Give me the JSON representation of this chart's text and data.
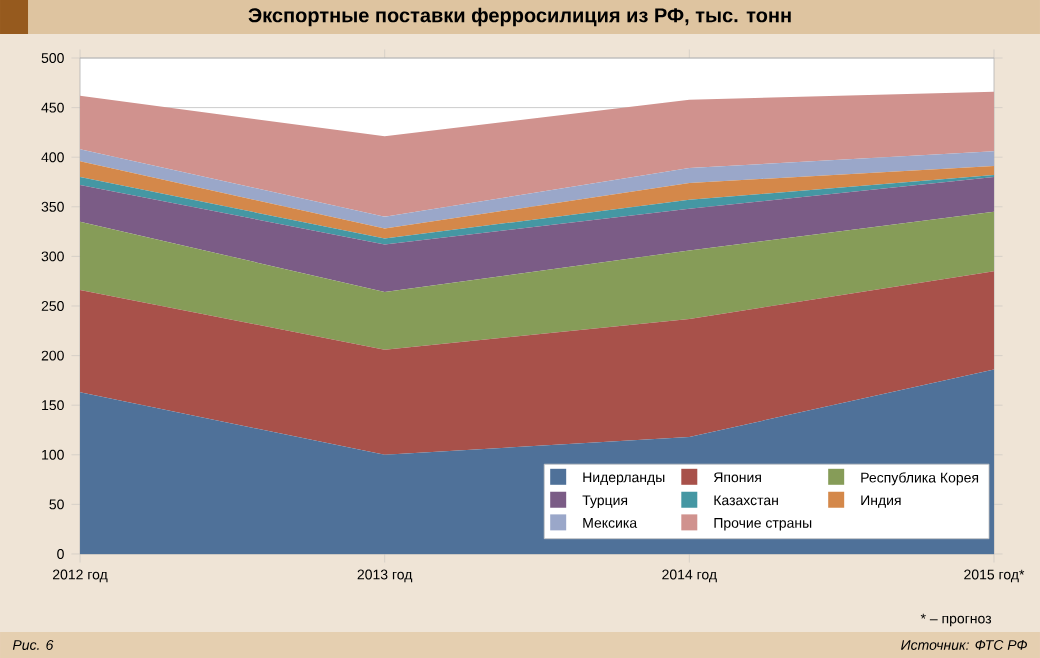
{
  "chart_data": {
    "type": "area",
    "title": "Экспортные поставки ферросилиция из РФ, тыс. тонн",
    "categories": [
      "2012 год",
      "2013 год",
      "2014 год",
      "2015 год*"
    ],
    "stacked": true,
    "series": [
      {
        "name": "Нидерланды",
        "color": "#4f7199",
        "values": [
          163,
          100,
          118,
          186
        ]
      },
      {
        "name": "Япония",
        "color": "#a8514a",
        "values": [
          103,
          106,
          119,
          99
        ]
      },
      {
        "name": "Республика Корея",
        "color": "#869c58",
        "values": [
          69,
          58,
          69,
          60
        ]
      },
      {
        "name": "Турция",
        "color": "#7b5c86",
        "values": [
          37,
          48,
          42,
          35
        ]
      },
      {
        "name": "Казахстан",
        "color": "#4597a3",
        "values": [
          8,
          6,
          9,
          2
        ]
      },
      {
        "name": "Индия",
        "color": "#d4884a",
        "values": [
          16,
          10,
          17,
          9
        ]
      },
      {
        "name": "Мексика",
        "color": "#9aa7c9",
        "values": [
          12,
          12,
          15,
          15
        ]
      },
      {
        "name": "Прочие страны",
        "color": "#d0928e",
        "values": [
          54,
          81,
          69,
          60
        ]
      }
    ],
    "ylim": [
      0,
      500
    ],
    "yticks": [
      0,
      50,
      100,
      150,
      200,
      250,
      300,
      350,
      400,
      450,
      500
    ],
    "grid": "y",
    "legend": "bottom right",
    "annotations": [
      "* – прогноз",
      "Рис. 6",
      "Источник: ФТС РФ"
    ]
  }
}
